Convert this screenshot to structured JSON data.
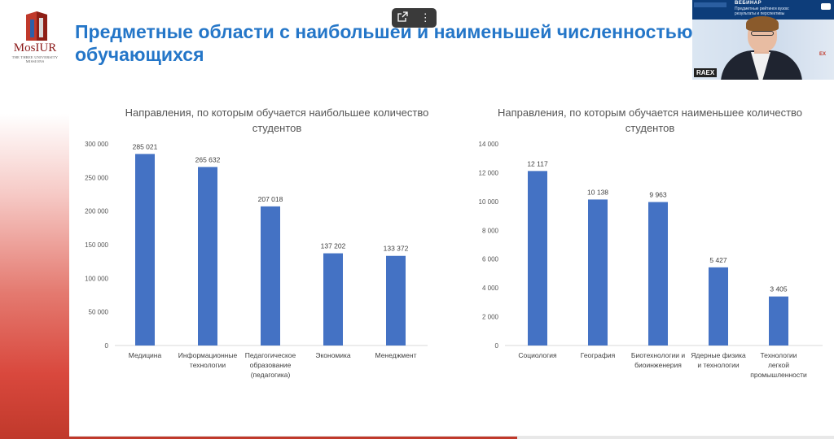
{
  "overlay": {
    "share_icon": "share-icon",
    "more_icon": "more-vertical-icon"
  },
  "logo": {
    "text": "MosIUR",
    "subtitle": "THE THREE UNIVERSITY MISSIONS"
  },
  "slide": {
    "title": "Предметные области с наибольшей и наименьшей численностью обучающихся"
  },
  "webcam": {
    "banner_title": "ВЕБИНАР",
    "banner_subtitle": "Предметные рейтинги вузов: результаты и перспективы",
    "tag": "RAEX",
    "side_text": "ЕХ"
  },
  "colors": {
    "bar": "#4472c4",
    "title": "#2476c8",
    "accent": "#c0392b"
  },
  "chart_data": [
    {
      "type": "bar",
      "title": "Направления, по которым обучается наибольшее количество студентов",
      "categories": [
        "Медицина",
        "Информационные технологии",
        "Педагогическое образование (педагогика)",
        "Экономика",
        "Менеджмент"
      ],
      "category_lines": [
        [
          "Медицина"
        ],
        [
          "Информационные",
          "технологии"
        ],
        [
          "Педагогическое",
          "образование",
          "(педагогика)"
        ],
        [
          "Экономика"
        ],
        [
          "Менеджмент"
        ]
      ],
      "values": [
        285021,
        265632,
        207018,
        137202,
        133372
      ],
      "value_labels": [
        "285 021",
        "265 632",
        "207 018",
        "137 202",
        "133 372"
      ],
      "ylim": [
        0,
        300000
      ],
      "yticks": [
        0,
        50000,
        100000,
        150000,
        200000,
        250000,
        300000
      ],
      "ytick_labels": [
        "0",
        "50 000",
        "100 000",
        "150 000",
        "200 000",
        "250 000",
        "300 000"
      ],
      "grid": false,
      "xlabel": "",
      "ylabel": ""
    },
    {
      "type": "bar",
      "title": "Направления, по которым обучается наименьшее количество студентов",
      "categories": [
        "Социология",
        "География",
        "Биотехнологии и биоинженерия",
        "Ядерные физика и технологии",
        "Технологии легкой промышленности"
      ],
      "category_lines": [
        [
          "Социология"
        ],
        [
          "География"
        ],
        [
          "Биотехнологии и",
          "биоинженерия"
        ],
        [
          "Ядерные физика",
          "и технологии"
        ],
        [
          "Технологии",
          "легкой",
          "промышленности"
        ]
      ],
      "values": [
        12117,
        10138,
        9963,
        5427,
        3405
      ],
      "value_labels": [
        "12 117",
        "10 138",
        "9 963",
        "5 427",
        "3 405"
      ],
      "ylim": [
        0,
        14000
      ],
      "yticks": [
        0,
        2000,
        4000,
        6000,
        8000,
        10000,
        12000,
        14000
      ],
      "ytick_labels": [
        "0",
        "2 000",
        "4 000",
        "6 000",
        "8 000",
        "10 000",
        "12 000",
        "14 000"
      ],
      "grid": false,
      "xlabel": "",
      "ylabel": ""
    }
  ]
}
